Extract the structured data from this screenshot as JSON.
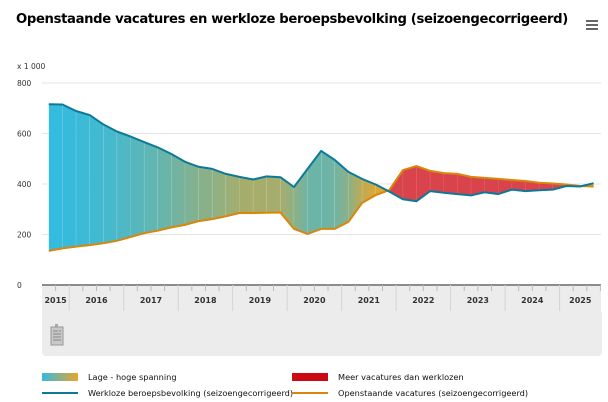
{
  "header": {
    "title": "Openstaande vacatures en werkloze beroepsbevolking (seizoengecorrigeerd)",
    "menu_icon": "hamburger-menu-icon"
  },
  "chart_data": {
    "type": "line",
    "title": "Openstaande vacatures en werkloze beroepsbevolking (seizoengecorrigeerd)",
    "unit_label": "x 1 000",
    "xlabel": "",
    "ylabel": "x 1 000",
    "ylim": [
      0,
      800
    ],
    "yticks": [
      "0",
      "200",
      "400",
      "600",
      "800"
    ],
    "ytick_values": [
      0,
      200,
      400,
      600,
      800
    ],
    "grid": true,
    "x_period": "quarterly",
    "x_start": "2015 Q3",
    "x_end": "2025 Q3",
    "x_year_labels": [
      "2015",
      "2016",
      "2017",
      "2018",
      "2019",
      "2020",
      "2021",
      "2022",
      "2023",
      "2024",
      "2025"
    ],
    "x": [
      "2015 Q3",
      "2015 Q4",
      "2016 Q1",
      "2016 Q2",
      "2016 Q3",
      "2016 Q4",
      "2017 Q1",
      "2017 Q2",
      "2017 Q3",
      "2017 Q4",
      "2018 Q1",
      "2018 Q2",
      "2018 Q3",
      "2018 Q4",
      "2019 Q1",
      "2019 Q2",
      "2019 Q3",
      "2019 Q4",
      "2020 Q1",
      "2020 Q2",
      "2020 Q3",
      "2020 Q4",
      "2021 Q1",
      "2021 Q2",
      "2021 Q3",
      "2021 Q4",
      "2022 Q1",
      "2022 Q2",
      "2022 Q3",
      "2022 Q4",
      "2023 Q1",
      "2023 Q2",
      "2023 Q3",
      "2023 Q4",
      "2024 Q1",
      "2024 Q2",
      "2024 Q3",
      "2024 Q4",
      "2025 Q1",
      "2025 Q2",
      "2025 Q3"
    ],
    "series": [
      {
        "name": "Werkloze beroepsbevolking (seizoengecorrigeerd)",
        "color": "#0b7a9a",
        "values": [
          716,
          715,
          689,
          673,
          636,
          608,
          588,
          566,
          545,
          519,
          488,
          468,
          460,
          440,
          428,
          418,
          430,
          427,
          388,
          460,
          531,
          495,
          448,
          420,
          398,
          370,
          340,
          332,
          372,
          365,
          360,
          355,
          367,
          360,
          378,
          372,
          375,
          378,
          392,
          390,
          403
        ]
      },
      {
        "name": "Openstaande vacatures (seizoengecorrigeerd)",
        "color": "#d9860b",
        "values": [
          135,
          145,
          152,
          158,
          165,
          175,
          190,
          205,
          215,
          228,
          238,
          253,
          261,
          272,
          285,
          285,
          286,
          287,
          222,
          202,
          222,
          222,
          250,
          325,
          356,
          376,
          455,
          471,
          452,
          443,
          440,
          428,
          424,
          420,
          416,
          412,
          405,
          402,
          398,
          392,
          390
        ]
      }
    ],
    "areas": [
      {
        "name": "Lage - hoge spanning",
        "colors": [
          "#33bbe0",
          "#e8a52a"
        ]
      },
      {
        "name": "Meer vacatures dan werklozen",
        "color": "#cc0a14"
      }
    ],
    "legend": [
      {
        "label": "Lage - hoge spanning",
        "kind": "gradient-area"
      },
      {
        "label": "Meer vacatures dan werklozen",
        "kind": "area"
      },
      {
        "label": "Werkloze beroepsbevolking (seizoengecorrigeerd)",
        "kind": "line"
      },
      {
        "label": "Openstaande vacatures (seizoengecorrigeerd)",
        "kind": "line"
      }
    ],
    "legend_position": "bottom"
  },
  "navigator": {
    "icon": "navigator-handle-icon"
  }
}
